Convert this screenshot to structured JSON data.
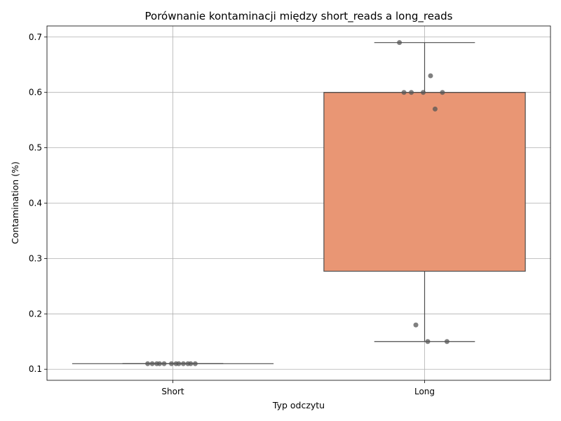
{
  "chart_data": {
    "type": "box",
    "title": "Porównanie kontaminacji między short_reads a long_reads",
    "xlabel": "Typ odczytu",
    "ylabel": "Contamination (%)",
    "categories": [
      "Short",
      "Long"
    ],
    "ylim": [
      0.08,
      0.72
    ],
    "yticks": [
      0.1,
      0.2,
      0.3,
      0.4,
      0.5,
      0.6,
      0.7
    ],
    "ytick_labels": [
      "0.1",
      "0.2",
      "0.3",
      "0.4",
      "0.5",
      "0.6",
      "0.7"
    ],
    "grid": true,
    "boxes": [
      {
        "category": "Short",
        "whisker_low": 0.11,
        "q1": 0.11,
        "median": 0.11,
        "q3": 0.11,
        "whisker_high": 0.11,
        "color": "#66c2a5",
        "points": [
          0.11,
          0.11,
          0.11,
          0.11,
          0.11,
          0.11,
          0.11,
          0.11,
          0.11,
          0.11,
          0.11,
          0.11
        ]
      },
      {
        "category": "Long",
        "whisker_low": 0.15,
        "q1": 0.277,
        "median": 0.6,
        "q3": 0.6,
        "whisker_high": 0.69,
        "color": "#e99674",
        "points": [
          0.69,
          0.63,
          0.6,
          0.6,
          0.6,
          0.6,
          0.57,
          0.18,
          0.15,
          0.15
        ]
      }
    ],
    "point_color": "#555555",
    "line_color": "#4d4d4d"
  }
}
